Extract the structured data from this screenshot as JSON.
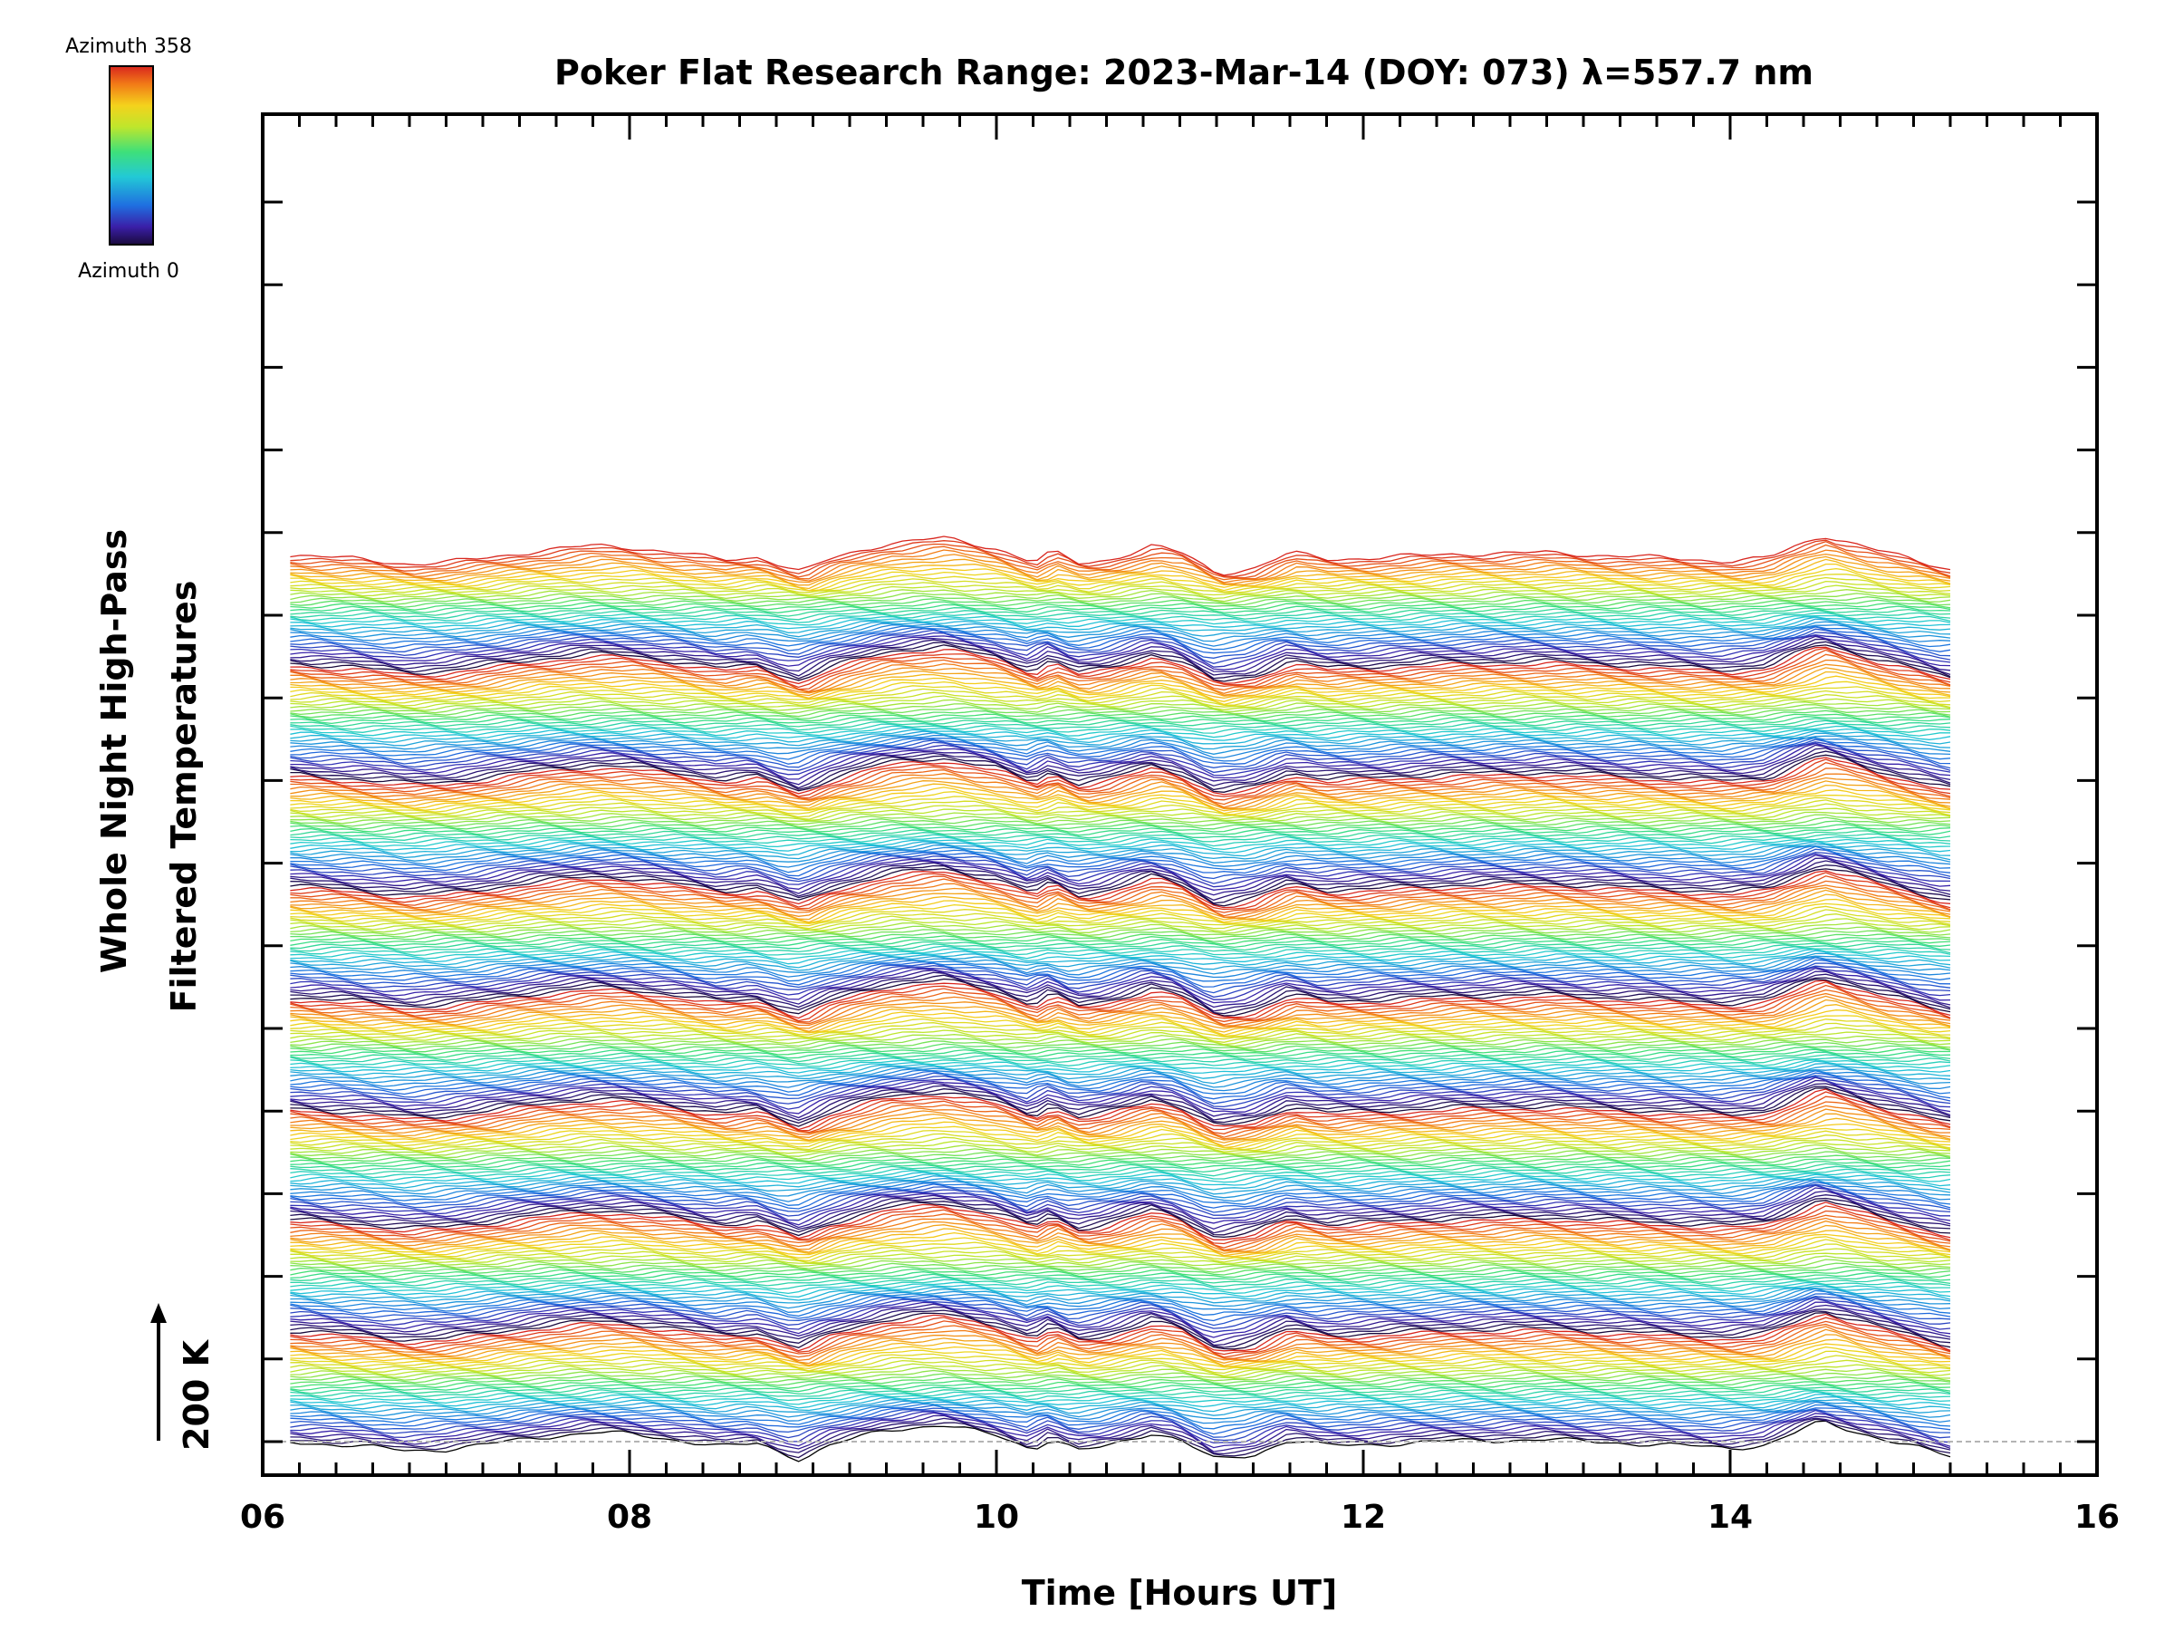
{
  "chart_data": {
    "type": "line",
    "title": "Poker Flat Research Range: 2023-Mar-14 (DOY: 073) λ=557.7 nm",
    "xlabel": "Time [Hours UT]",
    "ylabel_line1": "Whole Night High-Pass",
    "ylabel_line2": "Filtered Temperatures",
    "scale_bar_label": "200 K",
    "scale_bar_kelvin": 200,
    "xlim": [
      6,
      16
    ],
    "x_ticks": [
      6,
      8,
      10,
      12,
      14,
      16
    ],
    "x_tick_labels": [
      "06",
      "08",
      "10",
      "12",
      "14",
      "16"
    ],
    "data_time_range": [
      6.15,
      15.2
    ],
    "series_count": 312,
    "stack_offset_kelvin": 9.2,
    "colorbar": {
      "top_label": "Azimuth 358",
      "bottom_label": "Azimuth 0",
      "colormap": "rainbow",
      "range": [
        0,
        358
      ]
    },
    "representative_profile": {
      "time_hours": [
        6.15,
        6.5,
        6.8,
        7.0,
        7.2,
        7.5,
        7.8,
        8.0,
        8.3,
        8.5,
        8.7,
        8.93,
        9.1,
        9.4,
        9.7,
        10.0,
        10.2,
        10.3,
        10.45,
        10.6,
        10.85,
        11.0,
        11.2,
        11.4,
        11.6,
        11.8,
        12.0,
        12.5,
        13.0,
        13.5,
        14.0,
        14.2,
        14.5,
        14.8,
        15.2
      ],
      "temperature_kelvin": [
        0,
        -10,
        -22,
        -18,
        -8,
        10,
        22,
        18,
        2,
        -12,
        -5,
        -42,
        -8,
        28,
        40,
        15,
        -18,
        8,
        -22,
        -12,
        22,
        5,
        -45,
        -32,
        5,
        -10,
        -8,
        2,
        5,
        -5,
        -15,
        -8,
        48,
        10,
        -35
      ]
    },
    "colors": {
      "axes": "#000000",
      "frame": "#000000",
      "reference_line": "#b4b4b4"
    },
    "grid": false
  }
}
